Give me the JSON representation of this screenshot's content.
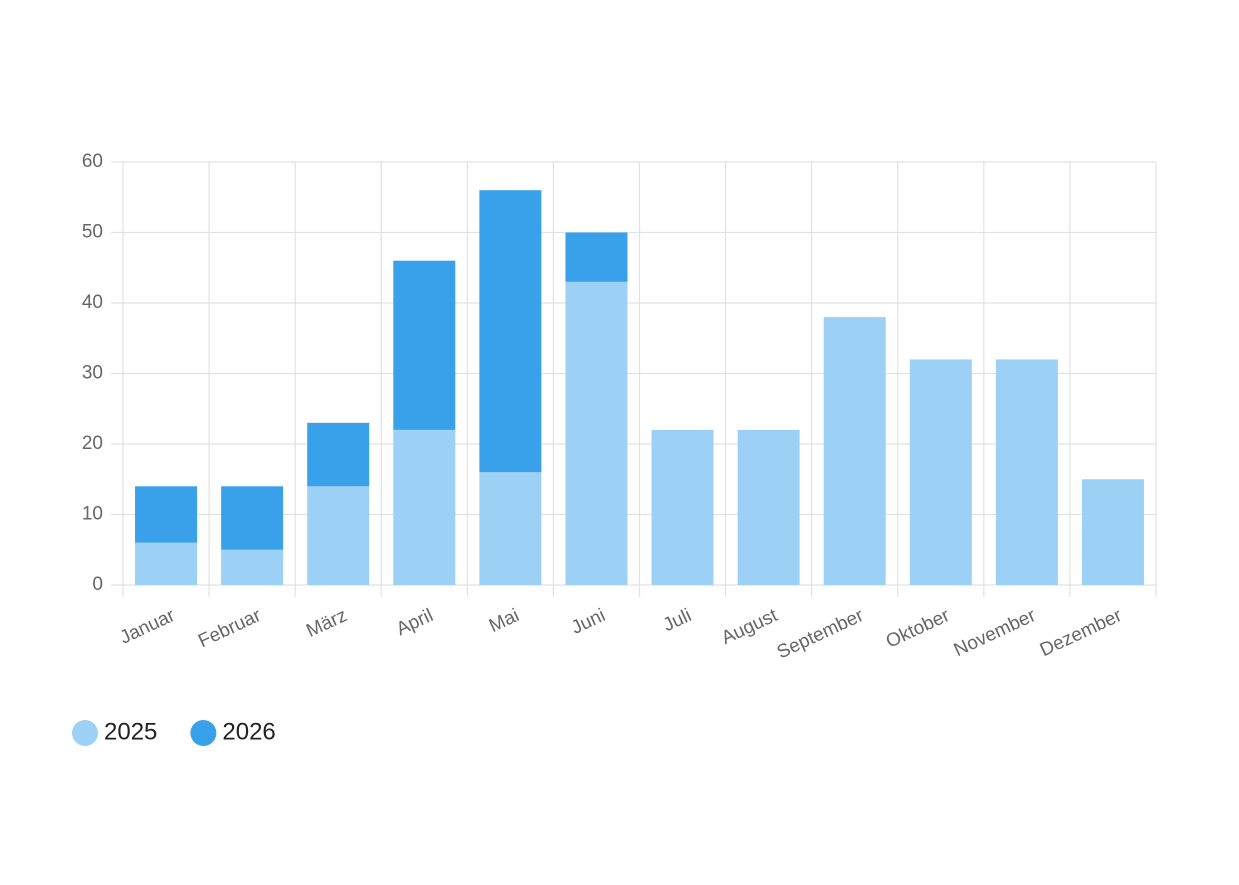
{
  "chart_data": {
    "type": "stacked-bar",
    "categories": [
      "Januar",
      "Februar",
      "März",
      "April",
      "Mai",
      "Juni",
      "Juli",
      "August",
      "September",
      "Oktober",
      "November",
      "Dezember"
    ],
    "series": [
      {
        "name": "2025",
        "color": "#9dd0f5",
        "values": [
          6,
          5,
          14,
          22,
          16,
          43,
          22,
          22,
          38,
          32,
          32,
          15
        ]
      },
      {
        "name": "2026",
        "color": "#38a1ea",
        "values": [
          8,
          9,
          9,
          24,
          40,
          7,
          null,
          null,
          null,
          null,
          null,
          null
        ]
      }
    ],
    "ylim": [
      0,
      60
    ],
    "yticks": [
      0,
      10,
      20,
      30,
      40,
      50,
      60
    ],
    "grid": true
  }
}
